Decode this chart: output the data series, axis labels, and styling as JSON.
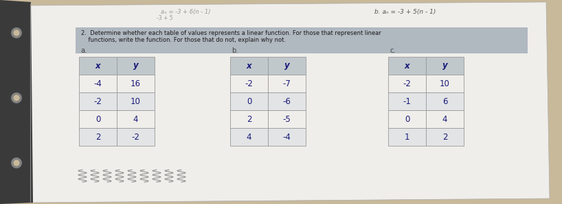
{
  "bg_color": "#c8b99a",
  "paper_color": "#f0eeea",
  "paper_edge_color": "#555555",
  "top_formula_left": "aₓ = -3 + 6(n - 1)",
  "top_formula_right": "b. aₙ = -3 + 5(n - 1)",
  "question_text_line1": "2.  Determine whether each table of values represents a linear function. For those that represent linear",
  "question_text_line2": "    functions, write the function. For those that do not, explain why not.",
  "question_banner_color": "#b0b8c0",
  "label_a": "a.",
  "label_b": "b.",
  "label_c": "c.",
  "table_a": {
    "headers": [
      "x",
      "y"
    ],
    "rows": [
      [
        "-4",
        "16"
      ],
      [
        "-2",
        "10"
      ],
      [
        "0",
        "4"
      ],
      [
        "2",
        "-2"
      ]
    ]
  },
  "table_b": {
    "headers": [
      "x",
      "y"
    ],
    "rows": [
      [
        "-2",
        "-7"
      ],
      [
        "0",
        "-6"
      ],
      [
        "2",
        "-5"
      ],
      [
        "4",
        "-4"
      ]
    ]
  },
  "table_c": {
    "headers": [
      "x",
      "y"
    ],
    "rows": [
      [
        "-2",
        "10"
      ],
      [
        "-1",
        "6"
      ],
      [
        "0",
        "4"
      ],
      [
        "1",
        "2"
      ]
    ]
  },
  "header_bg": "#c0c8cc",
  "row_bg_white": "#f0eeea",
  "row_bg_gray": "#e2e4e6",
  "border_color": "#999999",
  "text_color": "#1a1a7a",
  "binder_color": "#222222",
  "hole_color": "#888888"
}
